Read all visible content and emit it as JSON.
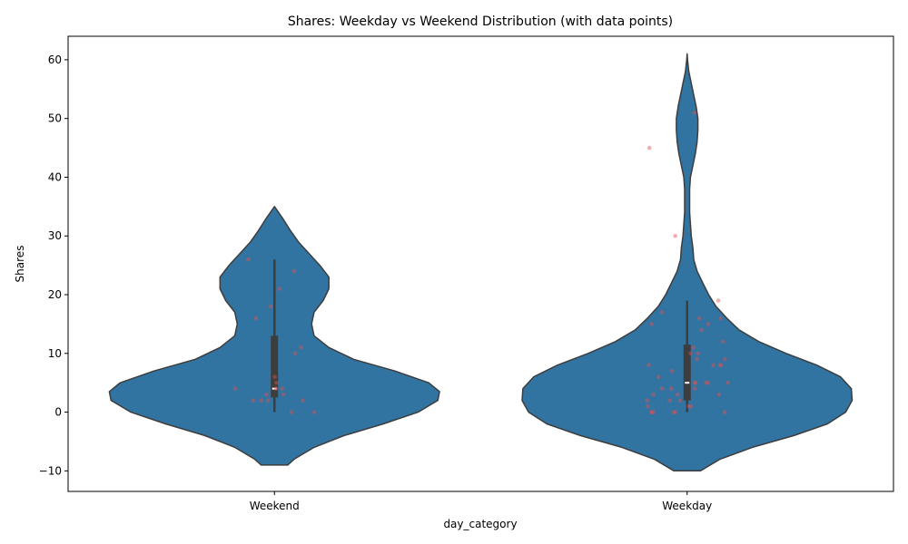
{
  "chart_data": {
    "type": "violin",
    "title": "Shares: Weekday vs Weekend Distribution (with data points)",
    "xlabel": "day_category",
    "ylabel": "Shares",
    "categories": [
      "Weekend",
      "Weekday"
    ],
    "ylim": [
      -13.5,
      64
    ],
    "yticks": [
      -10,
      0,
      10,
      20,
      30,
      40,
      50,
      60
    ],
    "grid": false,
    "colors": {
      "violin": "#3274a1",
      "violin_edge": "#3d3d3d",
      "box": "#3d3d3d",
      "median": "#ffffff",
      "points": "#e05050"
    },
    "violins": [
      {
        "category": "Weekend",
        "range": [
          -9,
          35
        ],
        "density": [
          [
            -9,
            0.16
          ],
          [
            -8,
            0.24
          ],
          [
            -6,
            0.48
          ],
          [
            -4,
            0.84
          ],
          [
            -2,
            1.32
          ],
          [
            0,
            1.74
          ],
          [
            2,
            1.98
          ],
          [
            3.5,
            2.0
          ],
          [
            5,
            1.87
          ],
          [
            7,
            1.46
          ],
          [
            9,
            0.96
          ],
          [
            11,
            0.66
          ],
          [
            13,
            0.48
          ],
          [
            15,
            0.45
          ],
          [
            17,
            0.48
          ],
          [
            19,
            0.59
          ],
          [
            21,
            0.66
          ],
          [
            23,
            0.66
          ],
          [
            25,
            0.55
          ],
          [
            27,
            0.42
          ],
          [
            29,
            0.29
          ],
          [
            31,
            0.19
          ],
          [
            33,
            0.1
          ],
          [
            35,
            0.0
          ]
        ],
        "box": {
          "q1": 2.5,
          "median": 4,
          "q3": 13,
          "whisker_low": 0,
          "whisker_high": 26
        },
        "points": [
          26,
          24,
          21,
          18,
          16,
          11,
          10,
          6,
          5,
          4,
          4,
          4,
          3,
          3,
          2,
          2,
          2,
          2,
          0,
          0
        ]
      },
      {
        "category": "Weekday",
        "range": [
          -10,
          61
        ],
        "density": [
          [
            -10,
            0.16
          ],
          [
            -8,
            0.4
          ],
          [
            -6,
            0.79
          ],
          [
            -4,
            1.29
          ],
          [
            -2,
            1.7
          ],
          [
            0,
            1.92
          ],
          [
            2,
            2.0
          ],
          [
            4,
            1.99
          ],
          [
            6,
            1.86
          ],
          [
            8,
            1.57
          ],
          [
            10,
            1.2
          ],
          [
            12,
            0.87
          ],
          [
            14,
            0.63
          ],
          [
            16,
            0.48
          ],
          [
            18,
            0.35
          ],
          [
            20,
            0.26
          ],
          [
            22,
            0.19
          ],
          [
            24,
            0.12
          ],
          [
            26,
            0.08
          ],
          [
            28,
            0.07
          ],
          [
            30,
            0.05
          ],
          [
            32,
            0.04
          ],
          [
            34,
            0.03
          ],
          [
            36,
            0.03
          ],
          [
            38,
            0.03
          ],
          [
            40,
            0.04
          ],
          [
            42,
            0.07
          ],
          [
            44,
            0.1
          ],
          [
            46,
            0.12
          ],
          [
            48,
            0.13
          ],
          [
            50,
            0.13
          ],
          [
            52,
            0.11
          ],
          [
            54,
            0.08
          ],
          [
            56,
            0.05
          ],
          [
            58,
            0.02
          ],
          [
            60,
            0.005
          ],
          [
            61,
            0.0
          ]
        ],
        "box": {
          "q1": 2,
          "median": 5,
          "q3": 11.5,
          "whisker_low": 0,
          "whisker_high": 19
        },
        "points": [
          51,
          45,
          30,
          19,
          17,
          16,
          16,
          15,
          15,
          14,
          12,
          11,
          10,
          10,
          9,
          9,
          8,
          8,
          8,
          8,
          7,
          6,
          5,
          5,
          5,
          5,
          5,
          4,
          4,
          4,
          3,
          3,
          3,
          2,
          2,
          2,
          1,
          1,
          1,
          0,
          0,
          0,
          0,
          0,
          0
        ]
      }
    ]
  }
}
